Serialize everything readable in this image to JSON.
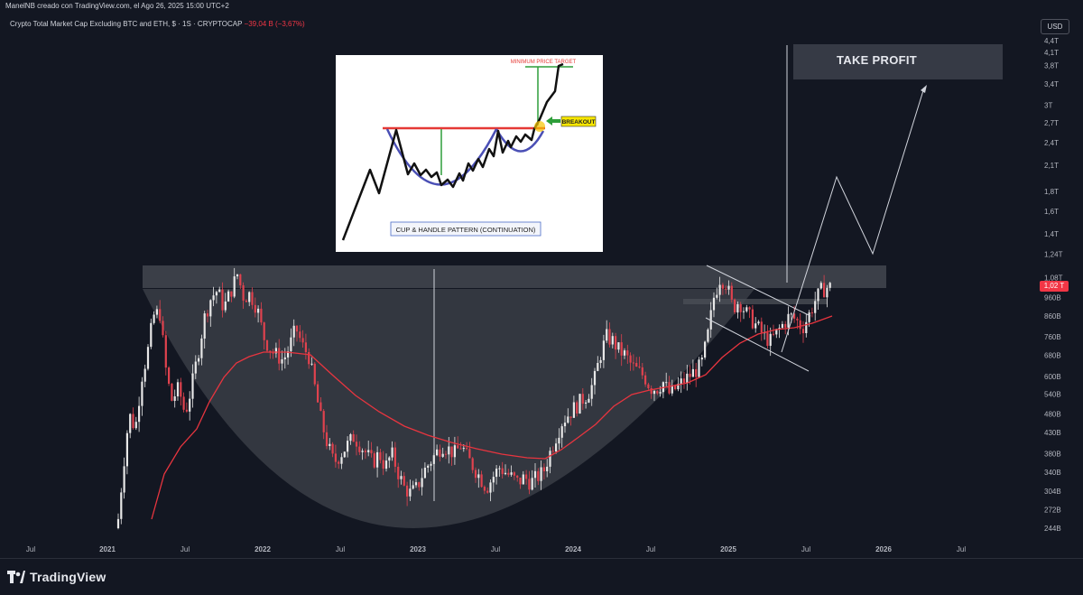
{
  "header": {
    "credit": "ManelNB creado con TradingView.com, el Ago 26, 2025 15:00 UTC+2",
    "symbol": "Crypto Total Market Cap Excluding BTC and ETH, $ · 1S · CRYPTOCAP",
    "change": "−39,04 B (−3,67%)",
    "currency": "USD"
  },
  "price_tag": "1,02 T",
  "take_profit_label": "TAKE PROFIT",
  "inset": {
    "title": "CUP & HANDLE PATTERN (CONTINUATION)",
    "target_label": "MINIMUM PRICE TARGET",
    "breakout_label": "BREAKOUT",
    "colors": {
      "resistance": "#e53935",
      "cup": "#4a4fb5",
      "measure": "#2e9e3a",
      "breakout_box": "#f7e600"
    }
  },
  "footer": {
    "brand": "TradingView"
  },
  "colors": {
    "background": "#131722",
    "candle_up": "#e8e8e8",
    "candle_down": "#e0424e",
    "moving_average": "#e8353f",
    "cup_fill": "#3a3d45",
    "resistance_zone": "#4a4d55"
  },
  "chart_data": {
    "type": "candlestick",
    "y_scale": "log",
    "ylim": [
      230000000000,
      4600000000000
    ],
    "y_ticks": [
      "4,4T",
      "4,1T",
      "3,8T",
      "3,4T",
      "3T",
      "2,7T",
      "2,4T",
      "2,1T",
      "1,8T",
      "1,6T",
      "1,4T",
      "1,24T",
      "1,08T",
      "960B",
      "860B",
      "760B",
      "680B",
      "600B",
      "540B",
      "480B",
      "430B",
      "380B",
      "340B",
      "304B",
      "272B",
      "244B"
    ],
    "x_ticks": [
      "Jul",
      "2021",
      "Jul",
      "2022",
      "Jul",
      "2023",
      "Jul",
      "2024",
      "Jul",
      "2025",
      "Jul",
      "2026",
      "Jul"
    ],
    "last_value": "1,02 T",
    "interval": "1W"
  }
}
